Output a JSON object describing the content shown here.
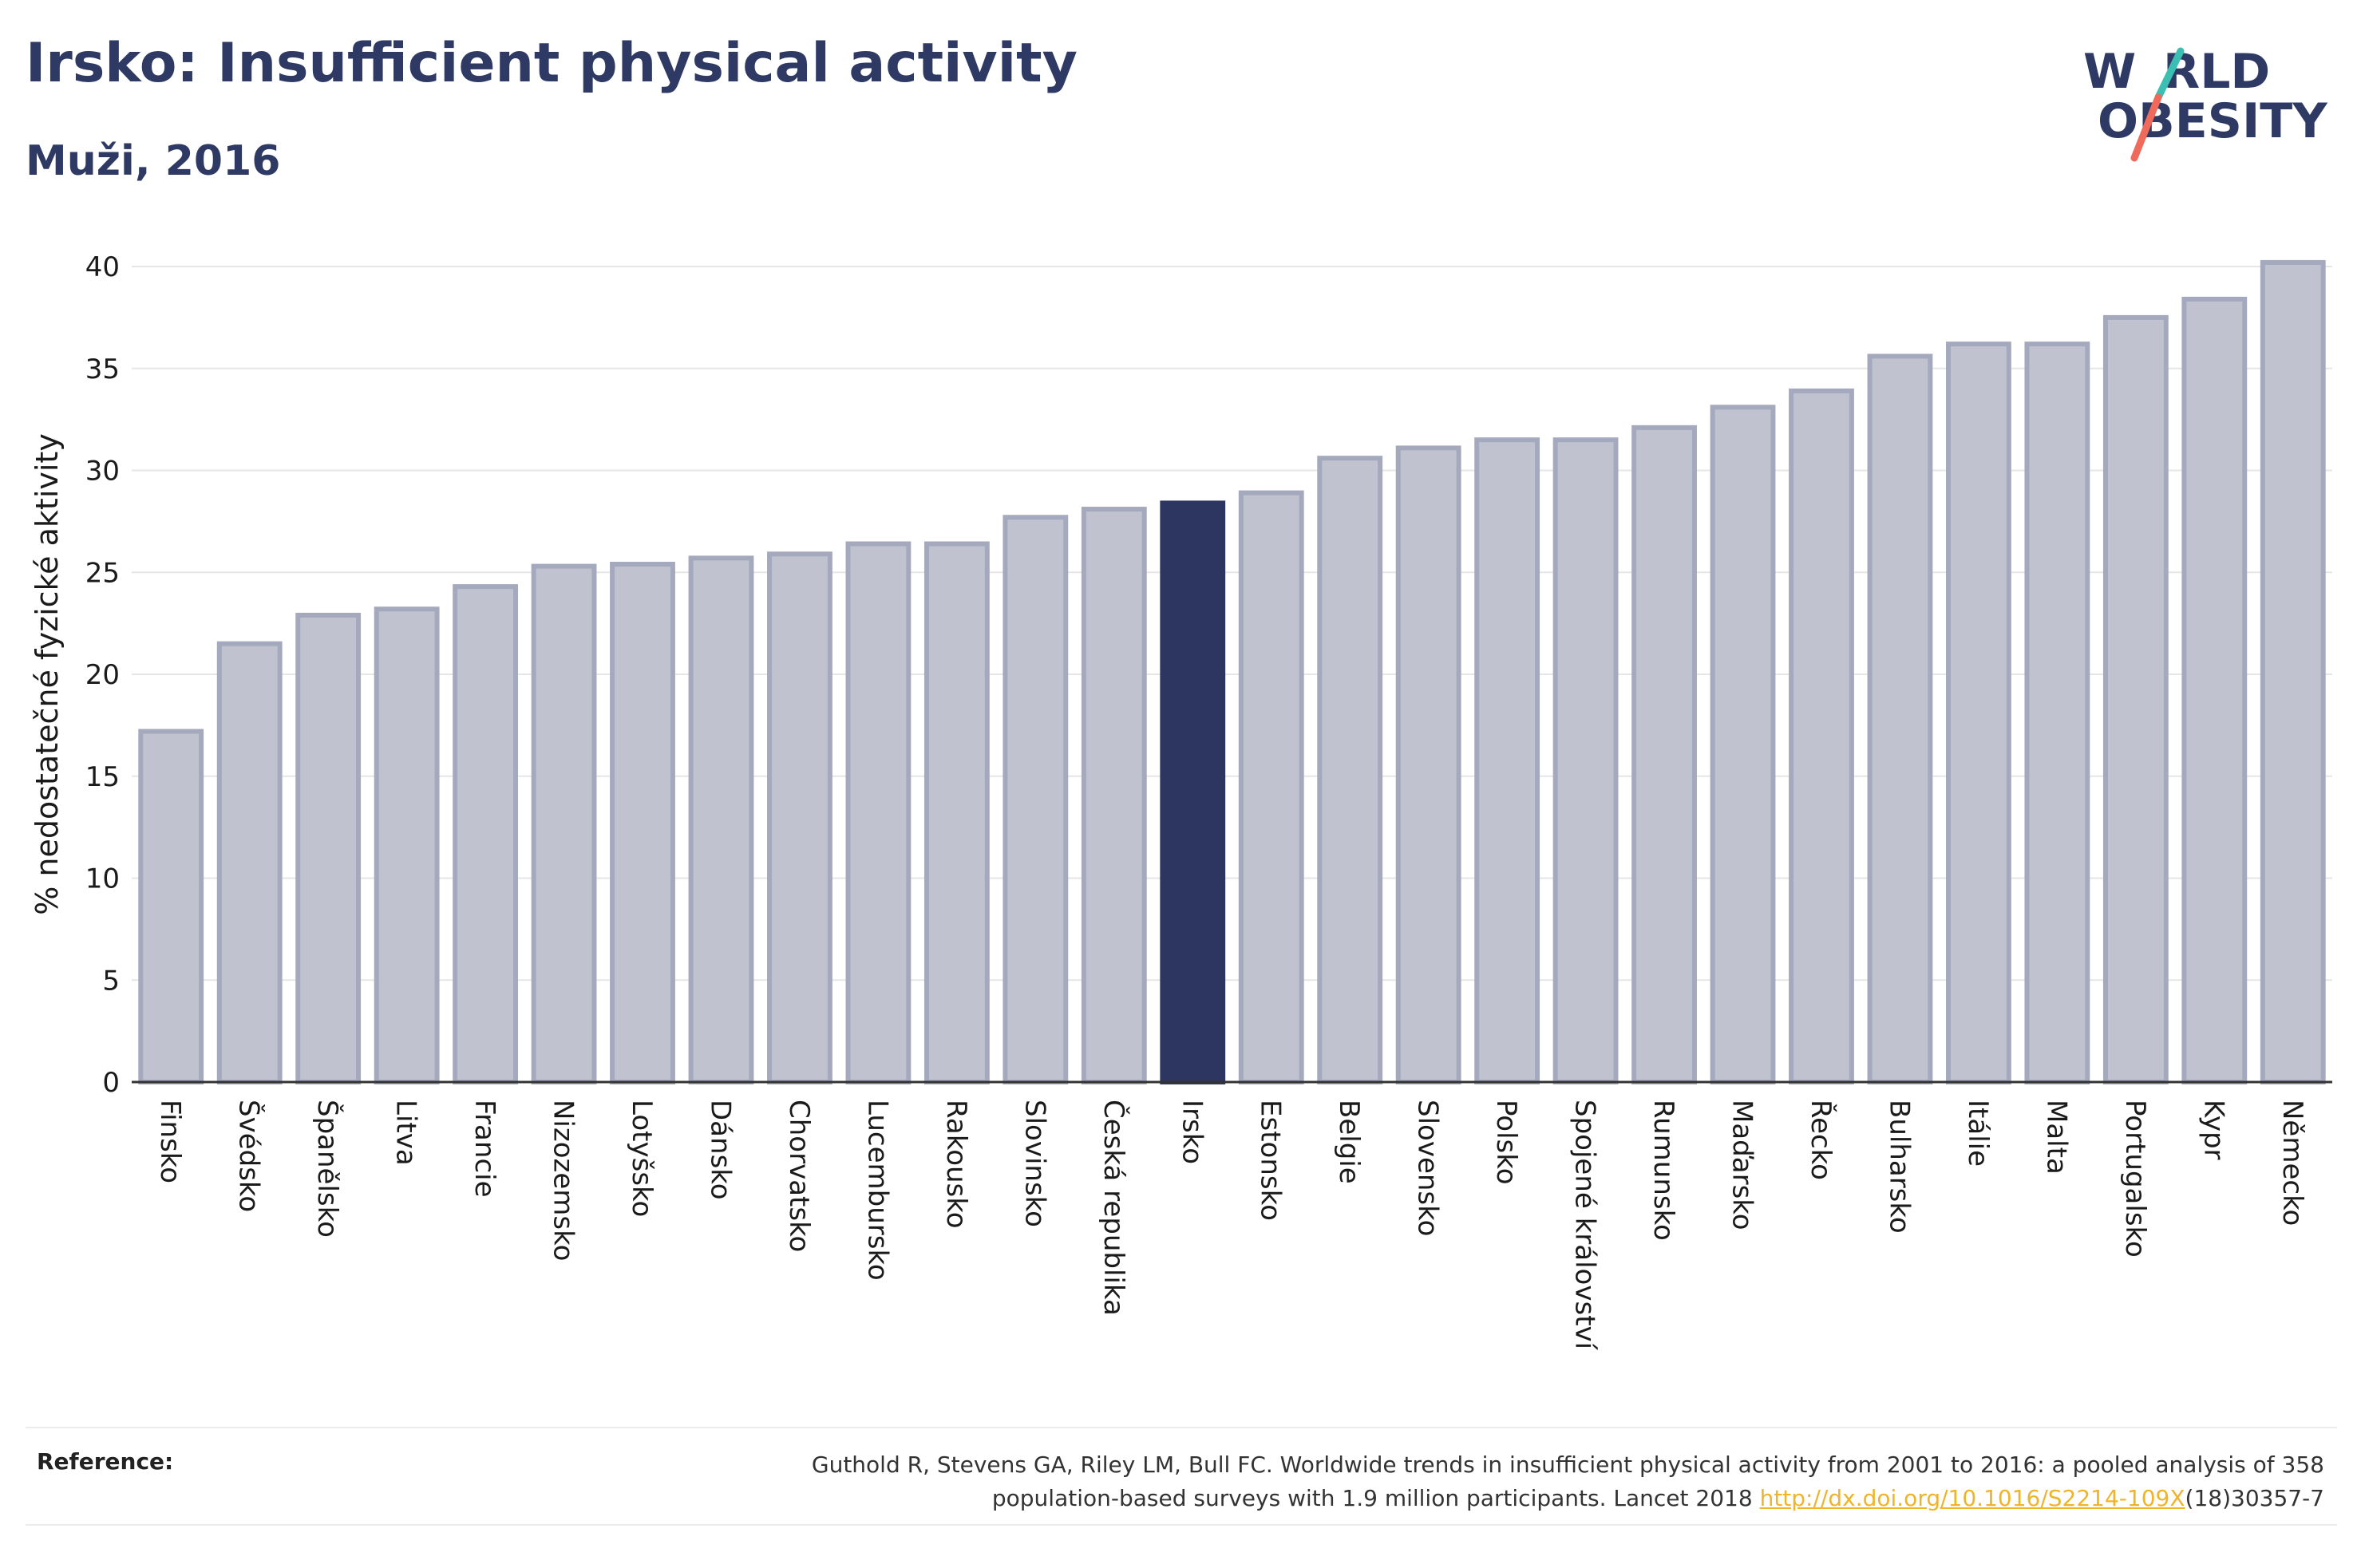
{
  "header": {
    "title": "Irsko: Insufficient physical activity",
    "subtitle": "Muži, 2016"
  },
  "logo": {
    "line1_a": "W",
    "line1_b": "RLD",
    "line2": "OBESITY",
    "color": "#2e3a63",
    "slash_teal": "#3bbfb3",
    "slash_coral": "#ef6a5a"
  },
  "chart_data": {
    "type": "bar",
    "ylabel": "% nedostatečné fyzické aktivity",
    "xlabel": "",
    "ylim": [
      0,
      40
    ],
    "yticks": [
      0,
      5,
      10,
      15,
      20,
      25,
      30,
      35,
      40
    ],
    "grid": true,
    "highlight": "Irsko",
    "colors": {
      "bar": "#c0c3cf",
      "bar_edge": "#a4a9bd",
      "highlight": "#2d3660"
    },
    "categories": [
      "Finsko",
      "Švédsko",
      "Španělsko",
      "Litva",
      "Francie",
      "Nizozemsko",
      "Lotyšsko",
      "Dánsko",
      "Chorvatsko",
      "Lucembursko",
      "Rakousko",
      "Slovinsko",
      "Česká republika",
      "Irsko",
      "Estonsko",
      "Belgie",
      "Slovensko",
      "Polsko",
      "Spojené království",
      "Rumunsko",
      "Maďarsko",
      "Řecko",
      "Bulharsko",
      "Itálie",
      "Malta",
      "Portugalsko",
      "Kypr",
      "Německo"
    ],
    "values": [
      17.2,
      21.5,
      22.9,
      23.2,
      24.3,
      25.3,
      25.4,
      25.7,
      25.9,
      26.4,
      26.4,
      27.7,
      28.1,
      28.4,
      28.9,
      30.6,
      31.1,
      31.5,
      31.5,
      32.1,
      33.1,
      33.9,
      35.6,
      36.2,
      36.2,
      37.5,
      38.4,
      40.2
    ]
  },
  "reference": {
    "label": "Reference:",
    "text1": "Guthold R, Stevens GA, Riley LM, Bull FC. Worldwide trends in insufficient physical activity from 2001 to 2016: a pooled analysis of 358",
    "text2": "population-based surveys with 1.9 million participants. Lancet 2018 ",
    "link": "http://dx.doi.org/10.1016/S2214-109X",
    "text3": "(18)30357-7"
  }
}
